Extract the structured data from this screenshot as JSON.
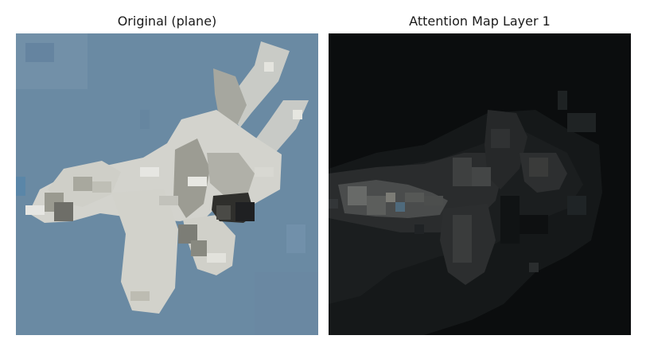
{
  "panels": [
    {
      "title": "Original (plane)"
    },
    {
      "title": "Attention Map Layer 1"
    }
  ],
  "colors": {
    "sky": "#6a8aa3",
    "sky_light": "#7d9bb3",
    "sky_dark": "#5f7f99",
    "plane_light": "#d6d6d0",
    "plane_mid": "#a9aaa2",
    "plane_dark": "#6c6c66",
    "plane_shadow": "#2c2c2a",
    "attn_bg": "#0b0d0e",
    "attn_low": "#1a1d1e",
    "attn_mid": "#333537",
    "attn_high": "#5a5a58",
    "attn_peak": "#8a8a84"
  }
}
